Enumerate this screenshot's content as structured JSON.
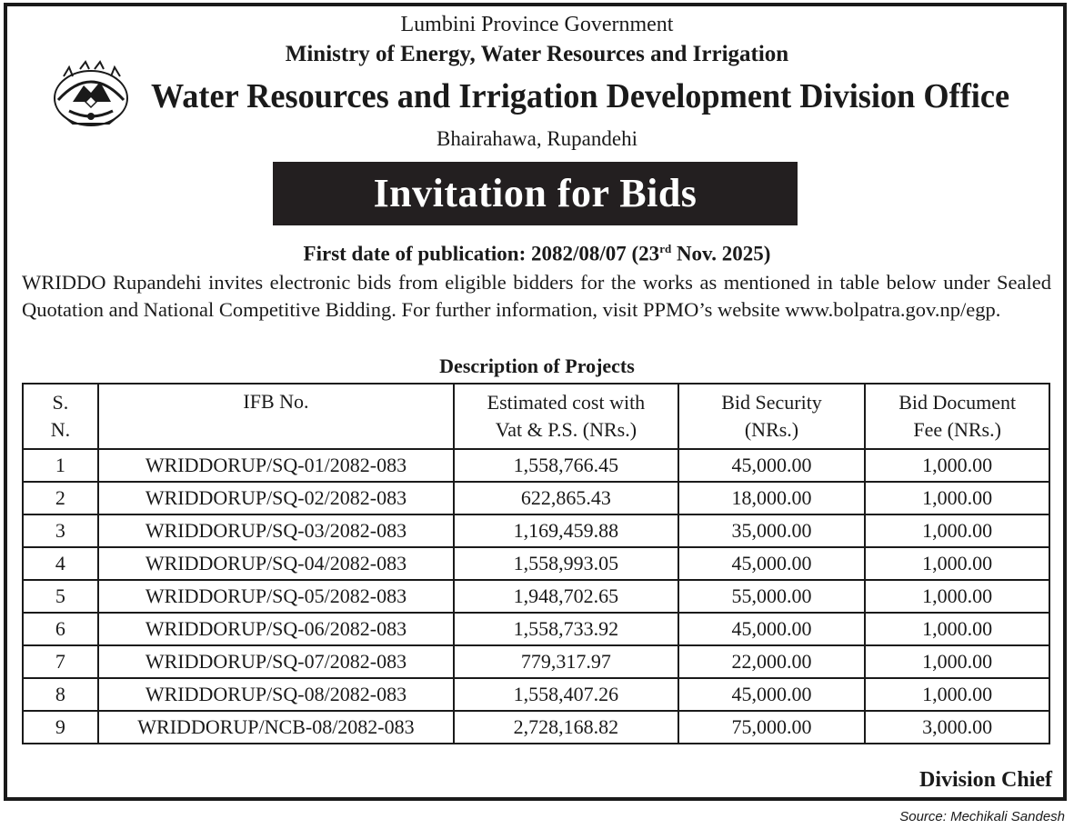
{
  "header": {
    "government": "Lumbini Province Government",
    "ministry": "Ministry of Energy, Water Resources and Irrigation",
    "office": "Water Resources and Irrigation Development Division Office",
    "location": "Bhairahawa, Rupandehi"
  },
  "banner": "Invitation for Bids",
  "publication": {
    "prefix": "First date of publication: 2082/08/07 (23",
    "superscript": "rd",
    "suffix": " Nov. 2025)"
  },
  "intro": "WRIDDO Rupandehi invites electronic bids from eligible bidders for the works as mentioned in table below under Sealed Quotation and National Competitive Bidding. For further information, visit PPMO’s website www.bolpatra.gov.np/egp.",
  "table_title": "Description of Projects",
  "table": {
    "headers": [
      [
        "S.",
        "N."
      ],
      [
        "IFB No."
      ],
      [
        "Estimated cost with",
        "Vat & P.S. (NRs.)"
      ],
      [
        "Bid Security",
        "(NRs.)"
      ],
      [
        "Bid Document",
        "Fee (NRs.)"
      ]
    ],
    "rows": [
      [
        "1",
        "WRIDDORUP/SQ-01/2082-083",
        "1,558,766.45",
        "45,000.00",
        "1,000.00"
      ],
      [
        "2",
        "WRIDDORUP/SQ-02/2082-083",
        "622,865.43",
        "18,000.00",
        "1,000.00"
      ],
      [
        "3",
        "WRIDDORUP/SQ-03/2082-083",
        "1,169,459.88",
        "35,000.00",
        "1,000.00"
      ],
      [
        "4",
        "WRIDDORUP/SQ-04/2082-083",
        "1,558,993.05",
        "45,000.00",
        "1,000.00"
      ],
      [
        "5",
        "WRIDDORUP/SQ-05/2082-083",
        "1,948,702.65",
        "55,000.00",
        "1,000.00"
      ],
      [
        "6",
        "WRIDDORUP/SQ-06/2082-083",
        "1,558,733.92",
        "45,000.00",
        "1,000.00"
      ],
      [
        "7",
        "WRIDDORUP/SQ-07/2082-083",
        "779,317.97",
        "22,000.00",
        "1,000.00"
      ],
      [
        "8",
        "WRIDDORUP/SQ-08/2082-083",
        "1,558,407.26",
        "45,000.00",
        "1,000.00"
      ],
      [
        "9",
        "WRIDDORUP/NCB-08/2082-083",
        "2,728,168.82",
        "75,000.00",
        "3,000.00"
      ]
    ]
  },
  "signature": "Division Chief",
  "source": "Source: Mechikali Sandesh",
  "colors": {
    "ink": "#1a1a1a",
    "banner_bg": "#231f20",
    "banner_text": "#ffffff"
  },
  "icons": {
    "emblem": "government-emblem-icon"
  }
}
